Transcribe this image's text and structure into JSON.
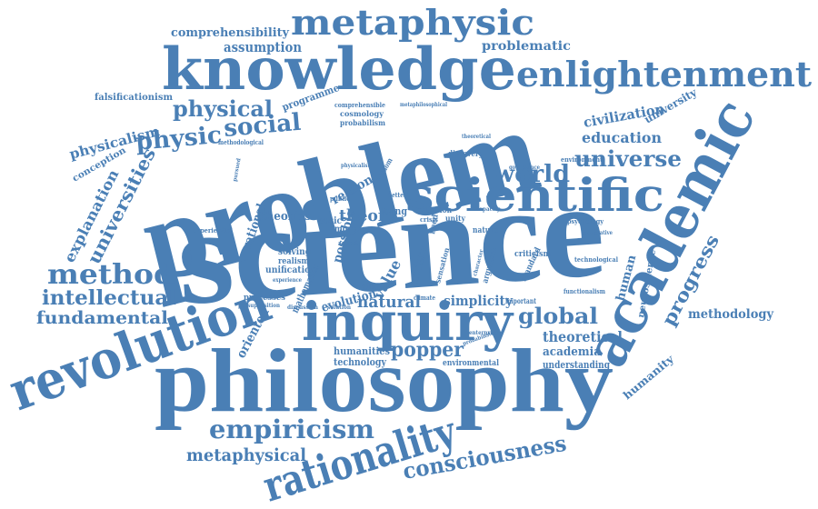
{
  "word_cloud": {
    "color": "#4a7fb5",
    "background": "#ffffff",
    "words": {
      "science": "science",
      "problem": "problem",
      "philosophy": "philosophy",
      "knowledge": "knowledge",
      "academic": "academic",
      "inquiry": "inquiry",
      "revolution": "revolution",
      "scientific": "scientific",
      "enlightenment": "enlightenment",
      "metaphysic": "metaphysic",
      "rationality": "rationality",
      "empiricism": "empiricism",
      "method": "method",
      "intellectual": "intellectual",
      "fundamental": "fundamental",
      "consciousness": "consciousness",
      "metaphysical": "metaphysical",
      "universe": "universe",
      "world": "world",
      "physic": "physic",
      "physical": "physical",
      "social": "social",
      "global": "global",
      "popper": "popper",
      "theoretical": "theoretical",
      "progress": "progress",
      "universities": "universities",
      "physicalism": "physicalism",
      "explanation": "explanation",
      "education": "education",
      "civilization": "civilization",
      "university": "university",
      "problematic": "problematic",
      "assumption": "assumption",
      "comprehensibility": "comprehensibility",
      "falsificationism": "falsificationism",
      "programme": "programme",
      "conception": "conception",
      "natural": "natural",
      "theory": "theory",
      "theories": "theories",
      "reason": "reason",
      "value": "value",
      "evolution": "evolution",
      "simplicity": "simplicity",
      "academia": "academia",
      "understanding": "understanding",
      "humanity": "humanity",
      "human": "human",
      "neuroscience": "neuroscience",
      "methodology": "methodology",
      "oriented": "oriented",
      "humanities": "humanities",
      "technology": "technology",
      "environmental": "environmental",
      "mathematics": "mathematics",
      "rational": "rational",
      "possible": "possible",
      "modern": "modern",
      "unification": "unification",
      "solving": "solving",
      "realism": "realism",
      "processes": "processes",
      "living": "living",
      "more": "more",
      "basic": "basic",
      "aim": "aim",
      "cosmology": "cosmology",
      "probabilism": "probabilism",
      "comprehensible": "comprehensible",
      "experiential": "experiential",
      "methodological": "methodological",
      "induction": "induction",
      "unity": "unity",
      "discovery": "discovery",
      "nature": "nature",
      "criticism": "criticism",
      "standard": "standard",
      "argument": "argument",
      "important": "important",
      "technological": "technological",
      "functionalism": "functionalism",
      "environment": "environment",
      "psychology": "psychology",
      "climate": "climate",
      "crisis": "crisis",
      "need": "need",
      "sensation": "sensation",
      "wisdom": "wisdom",
      "public": "public",
      "better": "better",
      "aspect": "aspect",
      "solution": "solution",
      "discussion": "discussion",
      "presupposition": "presupposition",
      "probabilistic": "probabilistic",
      "enterprise": "enterprise",
      "character": "character",
      "capacity": "capacity",
      "governance": "governance",
      "metaphilosophical": "metaphilosophical",
      "theoretical_small": "theoretical",
      "experience": "experience",
      "pursued": "pursued",
      "physicalist": "physicalist",
      "cooperative": "cooperative"
    }
  }
}
